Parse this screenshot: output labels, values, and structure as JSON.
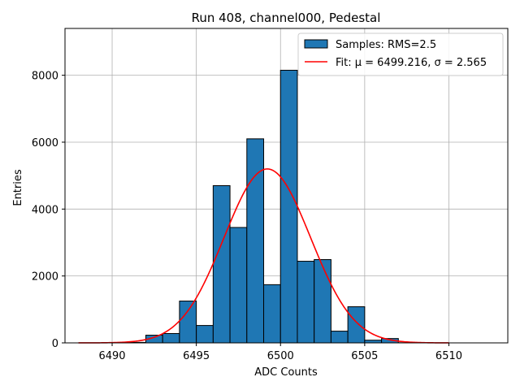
{
  "chart_data": {
    "type": "bar",
    "title": "Run 408, channel000, Pedestal",
    "xlabel": "ADC Counts",
    "ylabel": "Entries",
    "xlim": [
      6487.2,
      6513.5
    ],
    "ylim": [
      0,
      9400
    ],
    "xticks": [
      6490,
      6495,
      6500,
      6505,
      6510
    ],
    "yticks": [
      0,
      2000,
      4000,
      6000,
      8000
    ],
    "grid": true,
    "legend_position": "top-right",
    "histogram": {
      "name": "Samples: RMS=2.5",
      "color": "#1f77b4",
      "edgecolor": "#000000",
      "bin_width": 1,
      "bins": [
        {
          "left": 6491,
          "count": 15
        },
        {
          "left": 6492,
          "count": 230
        },
        {
          "left": 6493,
          "count": 280
        },
        {
          "left": 6494,
          "count": 1250
        },
        {
          "left": 6495,
          "count": 520
        },
        {
          "left": 6496,
          "count": 4700
        },
        {
          "left": 6497,
          "count": 3450
        },
        {
          "left": 6498,
          "count": 6100
        },
        {
          "left": 6499,
          "count": 1740
        },
        {
          "left": 6500,
          "count": 8150
        },
        {
          "left": 6501,
          "count": 2440
        },
        {
          "left": 6502,
          "count": 2490
        },
        {
          "left": 6503,
          "count": 350
        },
        {
          "left": 6504,
          "count": 1080
        },
        {
          "left": 6505,
          "count": 80
        },
        {
          "left": 6506,
          "count": 130
        },
        {
          "left": 6507,
          "count": 5
        }
      ]
    },
    "fit": {
      "name": "Fit: μ = 6499.216, σ = 2.565",
      "color": "#ff0000",
      "mu": 6499.216,
      "sigma": 2.565,
      "amplitude": 5200,
      "x_range": [
        6488,
        6510
      ]
    }
  }
}
